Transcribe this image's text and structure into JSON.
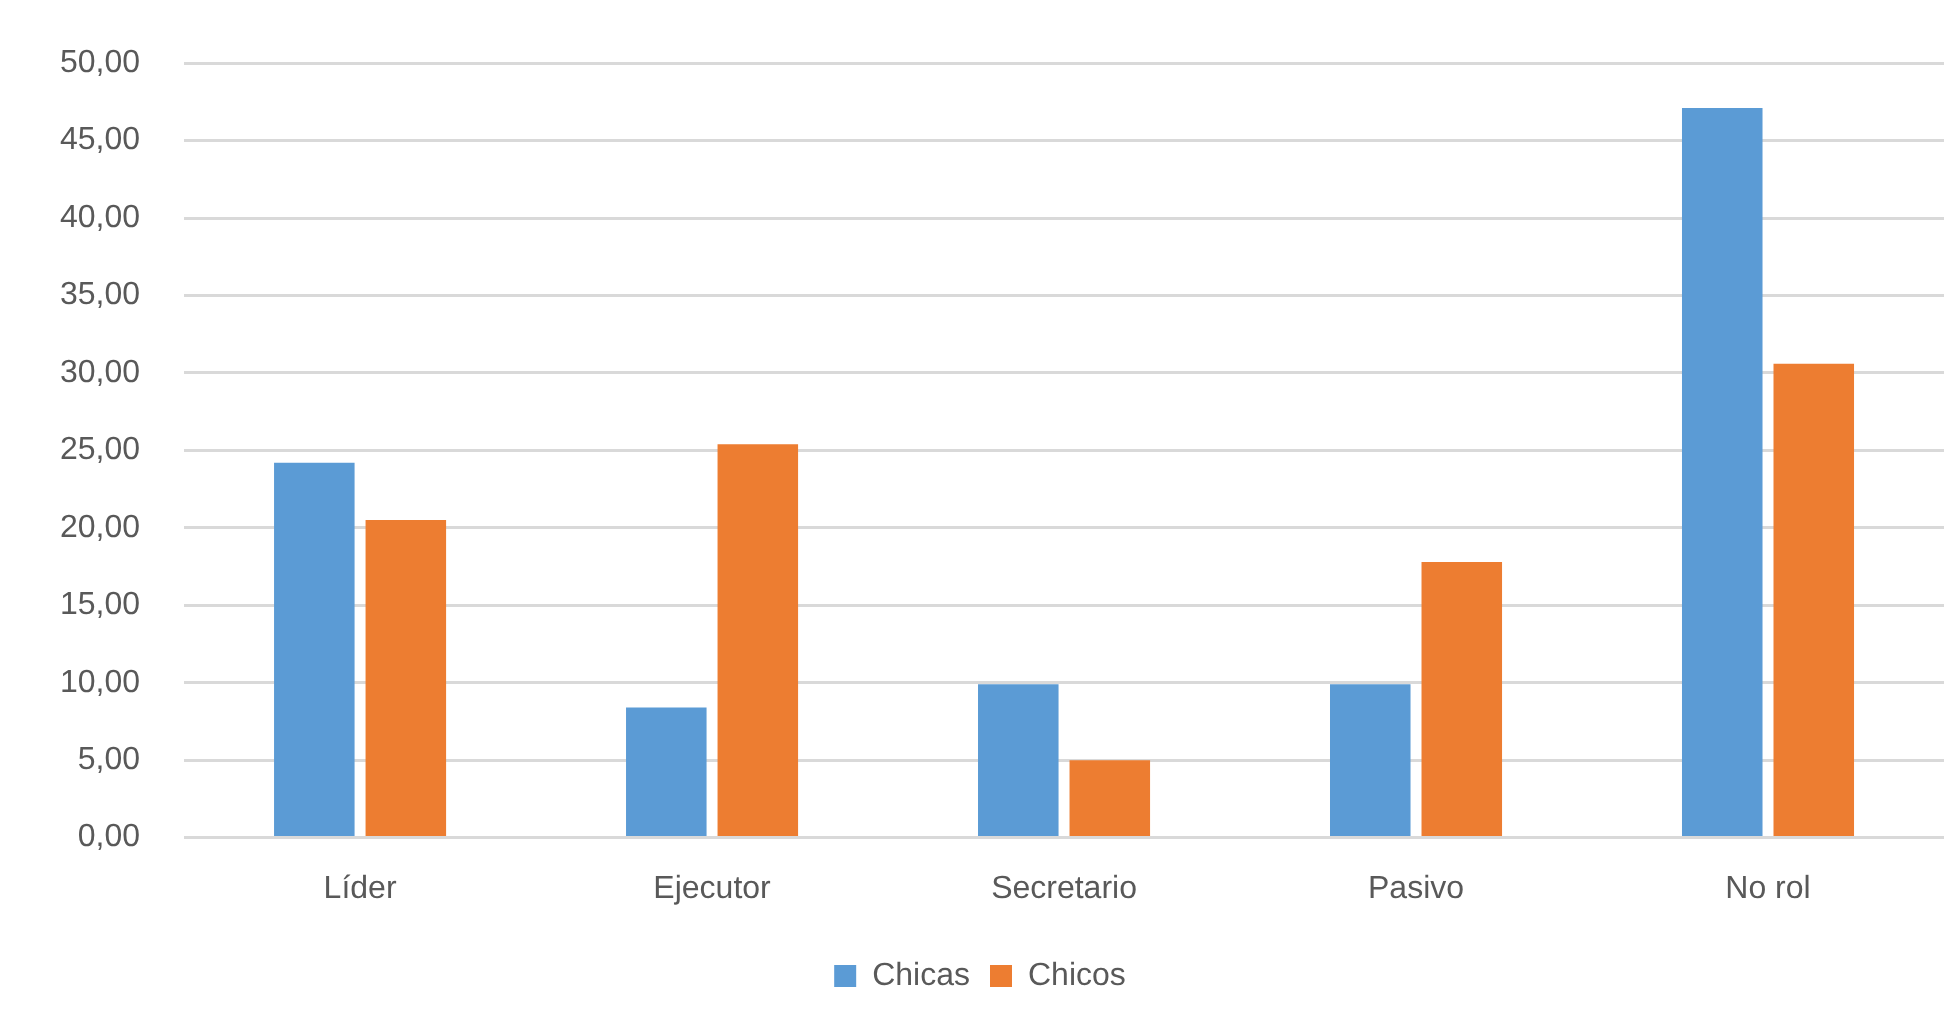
{
  "chart_data": {
    "type": "bar",
    "categories": [
      "Líder",
      "Ejecutor",
      "Secretario",
      "Pasivo",
      "No rol"
    ],
    "series": [
      {
        "name": "Chicas",
        "color": "#5b9bd5",
        "values": [
          24.2,
          8.4,
          9.9,
          9.9,
          47.1
        ]
      },
      {
        "name": "Chicos",
        "color": "#ed7d31",
        "values": [
          20.5,
          25.4,
          5.0,
          17.8,
          30.6
        ]
      }
    ],
    "ylim": [
      0,
      50
    ],
    "yticks": [
      {
        "value": 0,
        "label": "0,00"
      },
      {
        "value": 5,
        "label": "5,00"
      },
      {
        "value": 10,
        "label": "10,00"
      },
      {
        "value": 15,
        "label": "15,00"
      },
      {
        "value": 20,
        "label": "20,00"
      },
      {
        "value": 25,
        "label": "25,00"
      },
      {
        "value": 30,
        "label": "30,00"
      },
      {
        "value": 35,
        "label": "35,00"
      },
      {
        "value": 40,
        "label": "40,00"
      },
      {
        "value": 45,
        "label": "45,00"
      },
      {
        "value": 50,
        "label": "50,00"
      }
    ],
    "grid": "y",
    "legend": "bottom"
  }
}
